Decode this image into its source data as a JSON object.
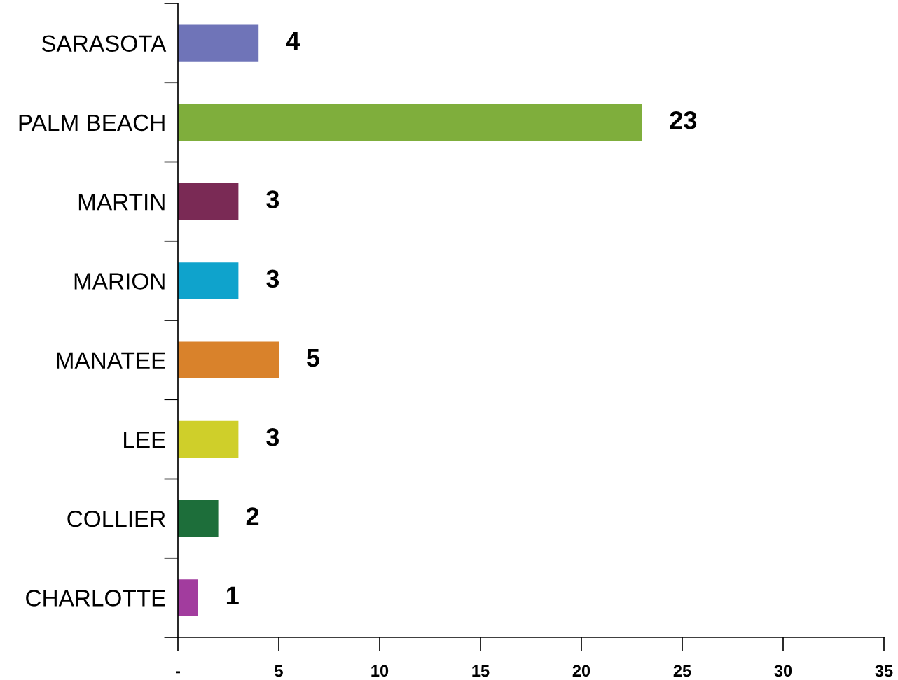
{
  "chart_data": {
    "type": "bar",
    "orientation": "horizontal",
    "categories": [
      "SARASOTA",
      "PALM BEACH",
      "MARTIN",
      "MARION",
      "MANATEE",
      "LEE",
      "COLLIER",
      "CHARLOTTE"
    ],
    "values": [
      4,
      23,
      3,
      3,
      5,
      3,
      2,
      1
    ],
    "colors": [
      "#6f74b8",
      "#7fae3c",
      "#7a2a55",
      "#0fa3cc",
      "#d9822b",
      "#cfcf2a",
      "#1d6e3a",
      "#a23c9e"
    ],
    "xlim": [
      0,
      35
    ],
    "xticks": [
      {
        "value": 0,
        "label": "-"
      },
      5,
      10,
      15,
      20,
      25,
      30,
      35
    ],
    "data_labels": true,
    "grid": false
  }
}
